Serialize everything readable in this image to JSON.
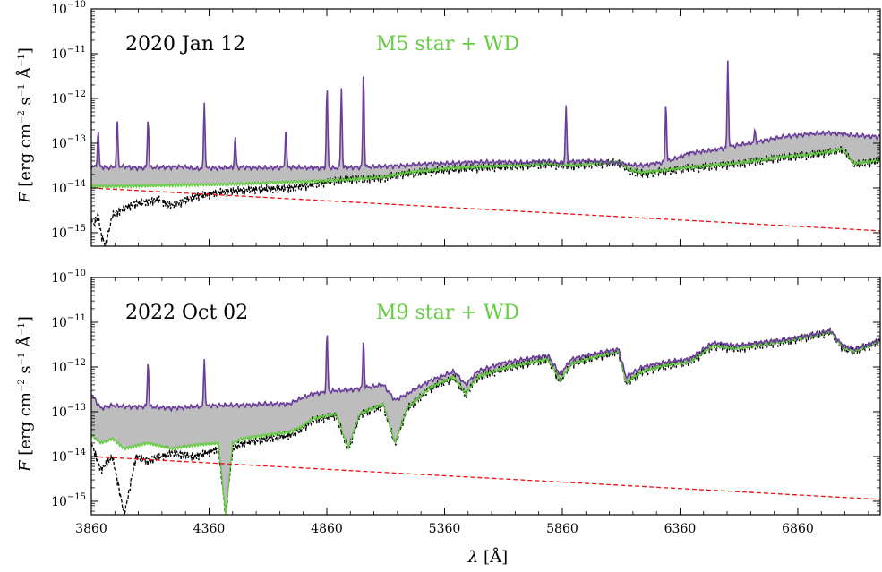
{
  "chart_data": [
    {
      "type": "line",
      "panel": "top",
      "annotations": {
        "date": "2020 Jan 12",
        "model": "M5 star + WD"
      },
      "ylabel": "F [erg cm−2 s−1 Å−1]",
      "xlabel": "",
      "yscale": "log",
      "ylim": [
        5e-16,
        1e-10
      ],
      "xlim": [
        3860,
        7210
      ],
      "xticks": [
        3860,
        4360,
        4860,
        5360,
        5860,
        6360,
        6860
      ],
      "yticks": [
        "10−10",
        "10−11",
        "10−12",
        "10−13",
        "10−14",
        "10−15"
      ],
      "colors": {
        "observed": "#6a3d9a",
        "model": "#66cc44",
        "star": "#000000",
        "wd": "#ee1111",
        "fill": "#bdbdbd"
      },
      "series": [
        {
          "name": "",
          "role": "observed",
          "x": [
            3860,
            3900,
            3930,
            3960,
            4000,
            4050,
            4100,
            4150,
            4200,
            4250,
            4300,
            4400,
            4500,
            4600,
            4700,
            4800,
            4900,
            5000,
            5100,
            5200,
            5300,
            5400,
            5500,
            5600,
            5700,
            5800,
            5850,
            5900,
            6000,
            6100,
            6150,
            6200,
            6300,
            6400,
            6500,
            6600,
            6700,
            6800,
            6900,
            7000,
            7100,
            7210
          ],
          "y": [
            3e-14,
            3e-14,
            2.8e-14,
            3e-14,
            3e-14,
            2.8e-14,
            2.8e-14,
            2.9e-14,
            2.9e-14,
            3e-14,
            2.7e-14,
            2.8e-14,
            2.9e-14,
            2.8e-14,
            2.9e-14,
            2.8e-14,
            2.8e-14,
            2.9e-14,
            3e-14,
            3.2e-14,
            3.5e-14,
            3.6e-14,
            3.8e-14,
            3.8e-14,
            3.7e-14,
            4e-14,
            3.6e-14,
            3.9e-14,
            4e-14,
            3.6e-14,
            3.3e-14,
            3.2e-14,
            3.8e-14,
            6e-14,
            7e-14,
            9e-14,
            1.1e-13,
            1.4e-13,
            1.6e-13,
            1.7e-13,
            1.5e-13,
            1.4e-13
          ]
        },
        {
          "name": "M5 star + WD",
          "role": "model",
          "x": [
            3860,
            4000,
            4200,
            4400,
            4600,
            4800,
            5000,
            5100,
            5200,
            5400,
            5600,
            5800,
            5900,
            6000,
            6100,
            6150,
            6200,
            6300,
            6400,
            6500,
            6600,
            6700,
            6800,
            6900,
            7000,
            7050,
            7100,
            7210
          ],
          "y": [
            1.1e-14,
            1.1e-14,
            1.15e-14,
            1.2e-14,
            1.3e-14,
            1.4e-14,
            1.6e-14,
            1.75e-14,
            2.2e-14,
            2.8e-14,
            3.1e-14,
            3.5e-14,
            3.2e-14,
            3.6e-14,
            3.8e-14,
            2.5e-14,
            2.2e-14,
            2.5e-14,
            2.9e-14,
            3.2e-14,
            3.6e-14,
            4.2e-14,
            5e-14,
            5.5e-14,
            6.5e-14,
            7.5e-14,
            3.5e-14,
            4.2e-14
          ]
        },
        {
          "name": "",
          "role": "star",
          "x": [
            3860,
            3870,
            3890,
            3900,
            3920,
            3950,
            4000,
            4050,
            4100,
            4150,
            4200,
            4300,
            4400,
            4500,
            4600,
            4700,
            4800,
            4900,
            5000,
            5100,
            5200,
            5400,
            5600,
            5800,
            5900,
            6000,
            6100,
            6150,
            6200,
            6300,
            6400,
            6500,
            6600,
            6700,
            6800,
            6900,
            7000,
            7050,
            7100,
            7210
          ],
          "y": [
            2e-15,
            1.5e-15,
            2.5e-15,
            1e-15,
            5e-16,
            2.5e-15,
            3.5e-15,
            4.5e-15,
            5e-15,
            5.5e-15,
            4e-15,
            6.5e-15,
            8e-15,
            9e-15,
            9.5e-15,
            1e-14,
            1.2e-14,
            1.5e-14,
            1.6e-14,
            1.7e-14,
            2.1e-14,
            2.7e-14,
            3e-14,
            3.4e-14,
            3.1e-14,
            3.5e-14,
            3.7e-14,
            2.4e-14,
            2.1e-14,
            2.4e-14,
            2.8e-14,
            3.1e-14,
            3.5e-14,
            4.1e-14,
            4.9e-14,
            5.4e-14,
            6.4e-14,
            7.4e-14,
            3.4e-14,
            4.1e-14
          ]
        },
        {
          "name": "",
          "role": "wd",
          "x": [
            3860,
            7210
          ],
          "y": [
            1e-14,
            1.1e-15
          ]
        }
      ],
      "emission_lines": [
        {
          "x": 3889,
          "peak": 2e-13
        },
        {
          "x": 3970,
          "peak": 3.5e-13
        },
        {
          "x": 4101,
          "peak": 3.5e-13
        },
        {
          "x": 4340,
          "peak": 8e-13
        },
        {
          "x": 4471,
          "peak": 1.5e-13
        },
        {
          "x": 4686,
          "peak": 2e-13
        },
        {
          "x": 4861,
          "peak": 1.9e-12
        },
        {
          "x": 4922,
          "peak": 1.7e-12
        },
        {
          "x": 5016,
          "peak": 4e-12
        },
        {
          "x": 5876,
          "peak": 7e-13
        },
        {
          "x": 6300,
          "peak": 8e-13
        },
        {
          "x": 6563,
          "peak": 7e-12
        },
        {
          "x": 6678,
          "peak": 2e-13
        }
      ]
    },
    {
      "type": "line",
      "panel": "bottom",
      "annotations": {
        "date": "2022 Oct 02",
        "model": "M9 star + WD"
      },
      "ylabel": "F [erg cm−2 s−1 Å−1]",
      "xlabel": "λ [Å]",
      "yscale": "log",
      "ylim": [
        5e-16,
        1e-10
      ],
      "xlim": [
        3860,
        7210
      ],
      "xticks": [
        3860,
        4360,
        4860,
        5360,
        5860,
        6360,
        6860
      ],
      "xticklabels": [
        "3860",
        "4360",
        "4860",
        "5360",
        "5860",
        "6360",
        "6860"
      ],
      "yticks": [
        "10−10",
        "10−11",
        "10−12",
        "10−13",
        "10−14",
        "10−15"
      ],
      "colors": {
        "observed": "#6a3d9a",
        "model": "#66cc44",
        "star": "#000000",
        "wd": "#ee1111",
        "fill": "#bdbdbd"
      },
      "series": [
        {
          "name": "",
          "role": "observed",
          "x": [
            3860,
            3900,
            3950,
            4000,
            4100,
            4200,
            4300,
            4400,
            4500,
            4600,
            4700,
            4750,
            4800,
            4900,
            4950,
            5000,
            5100,
            5150,
            5200,
            5300,
            5400,
            5450,
            5500,
            5600,
            5700,
            5800,
            5850,
            5900,
            6000,
            6100,
            6130,
            6200,
            6300,
            6400,
            6500,
            6600,
            6700,
            6800,
            6900,
            7000,
            7050,
            7100,
            7210
          ],
          "y": [
            2.5e-13,
            1.2e-13,
            1.4e-13,
            1.3e-13,
            1.3e-13,
            1.2e-13,
            1.3e-13,
            1.4e-13,
            1.4e-13,
            1.5e-13,
            1.5e-13,
            2e-13,
            2.5e-13,
            3e-13,
            3e-13,
            3.3e-13,
            4e-13,
            1.8e-13,
            2.5e-13,
            5e-13,
            8e-13,
            4e-13,
            8e-13,
            1.2e-12,
            1.5e-12,
            1.8e-12,
            7e-13,
            1.5e-12,
            2e-12,
            2.5e-12,
            6e-13,
            1e-12,
            1.3e-12,
            1.5e-12,
            3.5e-12,
            3e-12,
            3.5e-12,
            4e-12,
            5e-12,
            6.5e-12,
            3e-12,
            2.5e-12,
            4e-12
          ]
        },
        {
          "name": "M9 star + WD",
          "role": "model",
          "x": [
            3860,
            3900,
            3950,
            4000,
            4100,
            4200,
            4300,
            4400,
            4430,
            4460,
            4500,
            4600,
            4700,
            4750,
            4800,
            4900,
            4950,
            5000,
            5100,
            5150,
            5200,
            5300,
            5400,
            5450,
            5500,
            5600,
            5700,
            5800,
            5850,
            5900,
            6000,
            6100,
            6130,
            6200,
            6300,
            6400,
            6500,
            6600,
            6700,
            6800,
            6900,
            7000,
            7050,
            7100,
            7210
          ],
          "y": [
            3e-14,
            2e-14,
            2.5e-14,
            1.5e-14,
            2e-14,
            1.5e-14,
            1.8e-14,
            2e-14,
            5e-16,
            2e-14,
            2.5e-14,
            3e-14,
            3.5e-14,
            4.5e-14,
            7e-14,
            9e-14,
            1.5e-14,
            9e-14,
            1.5e-13,
            2e-14,
            1.2e-13,
            3.5e-13,
            6e-13,
            2.5e-13,
            6e-13,
            9e-13,
            1.2e-12,
            1.5e-12,
            5e-13,
            1.2e-12,
            1.7e-12,
            2.2e-12,
            4.5e-13,
            8e-13,
            1.1e-12,
            1.3e-12,
            3e-12,
            2.6e-12,
            3.2e-12,
            3.7e-12,
            4.7e-12,
            6.2e-12,
            2.7e-12,
            2.3e-12,
            3.8e-12
          ]
        },
        {
          "name": "",
          "role": "star",
          "x": [
            3860,
            3900,
            3950,
            4000,
            4050,
            4100,
            4200,
            4300,
            4400,
            4430,
            4460,
            4500,
            4600,
            4700,
            4750,
            4800,
            4900,
            4950,
            5000,
            5100,
            5150,
            5200,
            5300,
            5400,
            5450,
            5500,
            5600,
            5700,
            5800,
            5850,
            5900,
            6000,
            6100,
            6130,
            6200,
            6300,
            6400,
            6500,
            6600,
            6700,
            6800,
            6900,
            7000,
            7050,
            7100,
            7210
          ],
          "y": [
            2e-14,
            5e-15,
            1e-14,
            5e-16,
            1e-14,
            8e-15,
            1.2e-14,
            1e-14,
            1.5e-14,
            5e-16,
            1.5e-14,
            2e-14,
            2.5e-14,
            3e-14,
            4e-14,
            6.5e-14,
            8.5e-14,
            1.4e-14,
            8.5e-14,
            1.4e-13,
            1.9e-14,
            1.15e-13,
            3.4e-13,
            5.9e-13,
            2.4e-13,
            5.9e-13,
            8.9e-13,
            1.19e-12,
            1.49e-12,
            4.9e-13,
            1.19e-12,
            1.69e-12,
            2.19e-12,
            4.4e-13,
            7.9e-13,
            1.09e-12,
            1.29e-12,
            2.99e-12,
            2.59e-12,
            3.19e-12,
            3.69e-12,
            4.69e-12,
            6.19e-12,
            2.69e-12,
            2.29e-12,
            3.79e-12
          ]
        },
        {
          "name": "",
          "role": "wd",
          "x": [
            3860,
            7210
          ],
          "y": [
            1e-14,
            1.1e-15
          ]
        }
      ],
      "emission_lines": [
        {
          "x": 4101,
          "peak": 1.3e-12
        },
        {
          "x": 4340,
          "peak": 1.5e-12
        },
        {
          "x": 4861,
          "peak": 6e-12
        },
        {
          "x": 5016,
          "peak": 4e-12
        }
      ]
    }
  ]
}
